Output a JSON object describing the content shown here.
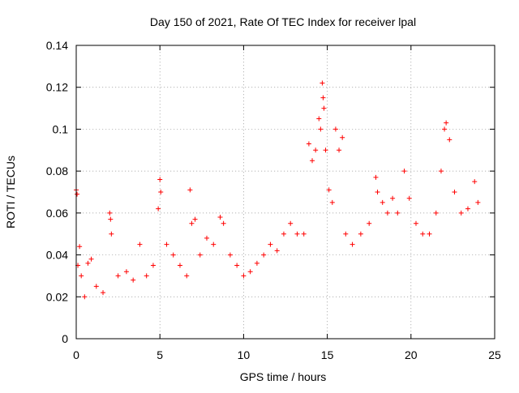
{
  "chart_data": {
    "type": "scatter",
    "title": "Day 150 of 2021, Rate Of TEC Index for receiver lpal",
    "xlabel": "GPS time / hours",
    "ylabel": "ROTI / TECUs",
    "xlim": [
      0,
      25
    ],
    "ylim": [
      0,
      0.14
    ],
    "xticks": [
      0,
      5,
      10,
      15,
      20,
      25
    ],
    "xtick_labels": [
      "0",
      "5",
      "10",
      "15",
      "20",
      "25"
    ],
    "yticks": [
      0,
      0.02,
      0.04,
      0.06,
      0.08,
      0.1,
      0.12,
      0.14
    ],
    "ytick_labels": [
      "0",
      "0.02",
      "0.04",
      "0.06",
      "0.08",
      "0.1",
      "0.12",
      "0.14"
    ],
    "grid": true,
    "marker": "plus",
    "color": "#ff0000",
    "series": [
      {
        "x": [
          0.0,
          0.05,
          0.1,
          0.2,
          0.3,
          0.5,
          0.7,
          0.9,
          1.2,
          1.6,
          2.0,
          2.05,
          2.1,
          2.5,
          3.0,
          3.4,
          3.8,
          4.2,
          4.6,
          4.9,
          5.0,
          5.05,
          5.4,
          5.8,
          6.2,
          6.6,
          6.8,
          6.9,
          7.1,
          7.4,
          7.8,
          8.2,
          8.6,
          8.8,
          9.2,
          9.6,
          10.0,
          10.4,
          10.8,
          11.2,
          11.6,
          12.0,
          12.4,
          12.8,
          13.2,
          13.6,
          13.9,
          14.1,
          14.3,
          14.5,
          14.6,
          14.7,
          14.75,
          14.8,
          14.9,
          15.1,
          15.3,
          15.5,
          15.7,
          15.9,
          16.1,
          16.5,
          17.0,
          17.5,
          17.9,
          18.0,
          18.3,
          18.6,
          18.9,
          19.2,
          19.6,
          19.9,
          20.3,
          20.7,
          21.1,
          21.5,
          21.8,
          22.0,
          22.1,
          22.3,
          22.6,
          23.0,
          23.4,
          23.8,
          24.0
        ],
        "y": [
          0.071,
          0.069,
          0.035,
          0.044,
          0.03,
          0.02,
          0.036,
          0.038,
          0.025,
          0.022,
          0.06,
          0.057,
          0.05,
          0.03,
          0.032,
          0.028,
          0.045,
          0.03,
          0.035,
          0.062,
          0.076,
          0.07,
          0.045,
          0.04,
          0.035,
          0.03,
          0.071,
          0.055,
          0.057,
          0.04,
          0.048,
          0.045,
          0.058,
          0.055,
          0.04,
          0.035,
          0.03,
          0.032,
          0.036,
          0.04,
          0.045,
          0.042,
          0.05,
          0.055,
          0.05,
          0.05,
          0.093,
          0.085,
          0.09,
          0.105,
          0.1,
          0.122,
          0.115,
          0.11,
          0.09,
          0.071,
          0.065,
          0.1,
          0.09,
          0.096,
          0.05,
          0.045,
          0.05,
          0.055,
          0.077,
          0.07,
          0.065,
          0.06,
          0.067,
          0.06,
          0.08,
          0.067,
          0.055,
          0.05,
          0.05,
          0.06,
          0.08,
          0.1,
          0.103,
          0.095,
          0.07,
          0.06,
          0.062,
          0.075,
          0.065
        ]
      }
    ]
  }
}
